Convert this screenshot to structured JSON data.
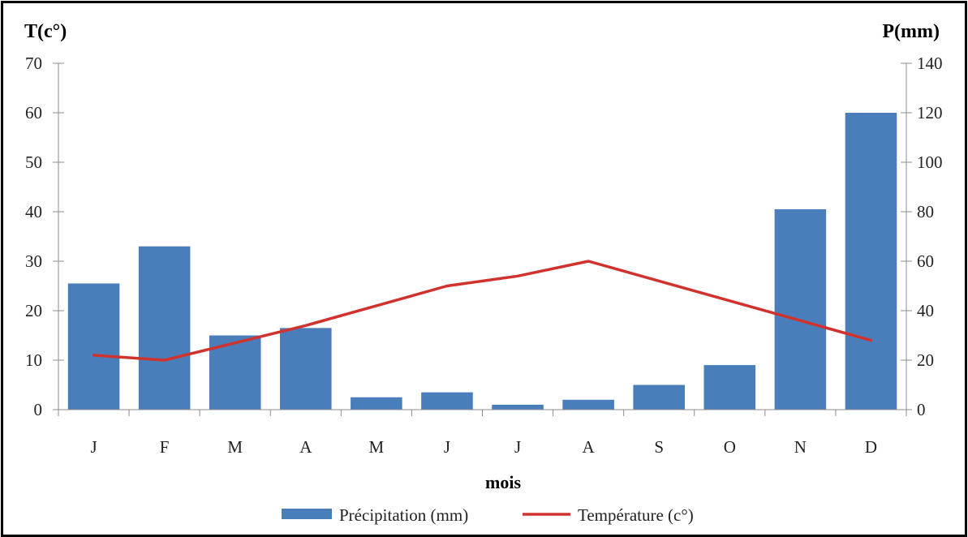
{
  "chart_data": {
    "type": "bar+line",
    "categories": [
      "J",
      "F",
      "M",
      "A",
      "M",
      "J",
      "J",
      "A",
      "S",
      "O",
      "N",
      "D"
    ],
    "xlabel": "mois",
    "y_left_label": "T(c°)",
    "y_right_label": "P(mm)",
    "y_left_lim": [
      0,
      70
    ],
    "y_left_ticks": [
      0,
      10,
      20,
      30,
      40,
      50,
      60,
      70
    ],
    "y_right_lim": [
      0,
      140
    ],
    "y_right_ticks": [
      0,
      20,
      40,
      60,
      80,
      100,
      120,
      140
    ],
    "series": [
      {
        "name": "Précipitation (mm)",
        "type": "bar",
        "axis": "right",
        "color": "#4a7ebb",
        "values": [
          51,
          66,
          30,
          33,
          5,
          7,
          2,
          4,
          10,
          18,
          81,
          120
        ]
      },
      {
        "name": "Température (c°)",
        "type": "line",
        "axis": "left",
        "color": "#d0332d",
        "values": [
          11,
          10,
          13.5,
          17,
          21,
          25,
          27,
          30,
          26,
          22,
          18,
          14
        ]
      }
    ],
    "grid": false,
    "legend_position": "bottom"
  }
}
